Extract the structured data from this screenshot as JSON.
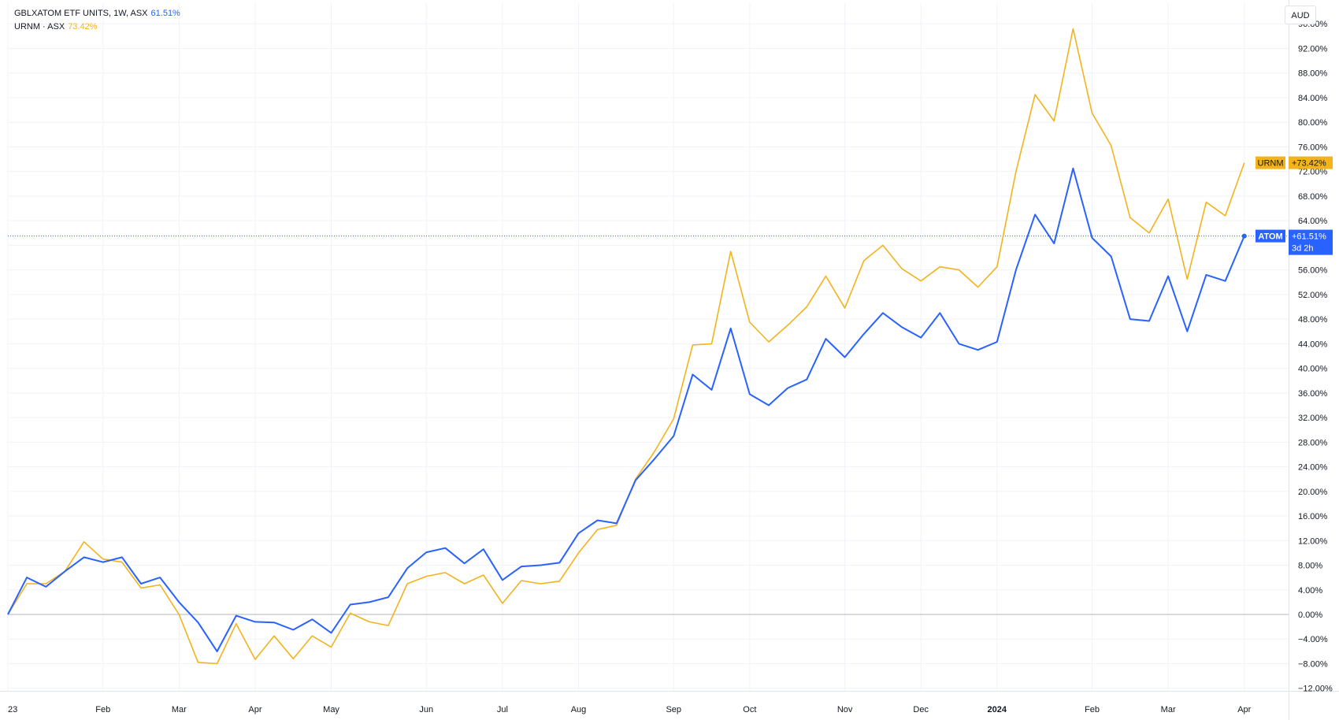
{
  "legend": {
    "series1_name": "GBLXATOM ETF UNITS, 1W, ASX",
    "series1_value": "61.51%",
    "series2_name": "URNM · ASX",
    "series2_value": "73.42%"
  },
  "currency_button": "AUD",
  "colors": {
    "atom": "#2962ff",
    "urnm": "#f2b31c",
    "grid": "#f0f3fa",
    "axis_line": "#e0e3eb",
    "zero_line": "#b2b5be"
  },
  "chart_data": {
    "type": "line",
    "x_unit": "week",
    "ylim": [
      -14,
      98
    ],
    "y_ticks": [
      -12,
      -8,
      -4,
      0,
      4,
      8,
      12,
      16,
      20,
      24,
      28,
      32,
      36,
      40,
      44,
      48,
      52,
      56,
      60,
      64,
      68,
      72,
      76,
      80,
      84,
      88,
      92,
      96
    ],
    "y_tick_labels": [
      "−12.00%",
      "−8.00%",
      "−4.00%",
      "0.00%",
      "4.00%",
      "8.00%",
      "12.00%",
      "16.00%",
      "20.00%",
      "24.00%",
      "28.00%",
      "32.00%",
      "36.00%",
      "40.00%",
      "44.00%",
      "48.00%",
      "52.00%",
      "56.00%",
      "60.00%",
      "64.00%",
      "68.00%",
      "72.00%",
      "76.00%",
      "80.00%",
      "84.00%",
      "88.00%",
      "92.00%",
      "96.00%"
    ],
    "x_ticks": [
      {
        "label": "23",
        "week": 0,
        "bold": false
      },
      {
        "label": "Feb",
        "week": 5,
        "bold": false
      },
      {
        "label": "Mar",
        "week": 9,
        "bold": false
      },
      {
        "label": "Apr",
        "week": 13,
        "bold": false
      },
      {
        "label": "May",
        "week": 17,
        "bold": false
      },
      {
        "label": "Jun",
        "week": 22,
        "bold": false
      },
      {
        "label": "Jul",
        "week": 26,
        "bold": false
      },
      {
        "label": "Aug",
        "week": 30,
        "bold": false
      },
      {
        "label": "Sep",
        "week": 35,
        "bold": false
      },
      {
        "label": "Oct",
        "week": 39,
        "bold": false
      },
      {
        "label": "Nov",
        "week": 44,
        "bold": false
      },
      {
        "label": "Dec",
        "week": 48,
        "bold": false
      },
      {
        "label": "2024",
        "week": 52,
        "bold": true
      },
      {
        "label": "Feb",
        "week": 57,
        "bold": false
      },
      {
        "label": "Mar",
        "week": 61,
        "bold": false
      },
      {
        "label": "Apr",
        "week": 65,
        "bold": false
      }
    ],
    "series": [
      {
        "name": "ATOM",
        "color": "#2962ff",
        "last_label": "+61.51%",
        "countdown": "3d 2h",
        "values": [
          0,
          6,
          4.5,
          7,
          9.3,
          8.5,
          9.3,
          5,
          6,
          2,
          -1.3,
          -6,
          -0.2,
          -1.2,
          -1.3,
          -2.5,
          -0.8,
          -3,
          1.6,
          2,
          2.8,
          7.5,
          10.1,
          10.8,
          8.3,
          10.6,
          5.6,
          7.8,
          8,
          8.4,
          13.2,
          15.3,
          14.8,
          21.8,
          25.3,
          29,
          39,
          36.5,
          46.5,
          35.8,
          34,
          36.8,
          38.2,
          44.8,
          41.8,
          45.6,
          49,
          46.7,
          45,
          49,
          44,
          43,
          44.3,
          56,
          65,
          60.3,
          72.5,
          61.2,
          58.2,
          48,
          47.7,
          55,
          46,
          55.2,
          54.2,
          61.51
        ]
      },
      {
        "name": "URNM",
        "color": "#f2b31c",
        "last_label": "+73.42%",
        "values": [
          0,
          5,
          5,
          7,
          11.8,
          9,
          8.5,
          4.3,
          4.8,
          0,
          -7.8,
          -8,
          -1.5,
          -7.3,
          -3.5,
          -7.2,
          -3.5,
          -5.3,
          0.2,
          -1.2,
          -1.8,
          5,
          6.2,
          6.8,
          5,
          6.4,
          1.8,
          5.5,
          5,
          5.4,
          10,
          13.8,
          14.5,
          22,
          26.5,
          31.8,
          43.8,
          44,
          59,
          47.5,
          44.3,
          47,
          50,
          55,
          49.8,
          57.5,
          60,
          56.2,
          54.2,
          56.5,
          56,
          53.2,
          56.5,
          72,
          84.5,
          80.2,
          95.2,
          81.5,
          76.2,
          64.5,
          62,
          67.5,
          54.5,
          67,
          64.8,
          73.42
        ]
      }
    ]
  }
}
